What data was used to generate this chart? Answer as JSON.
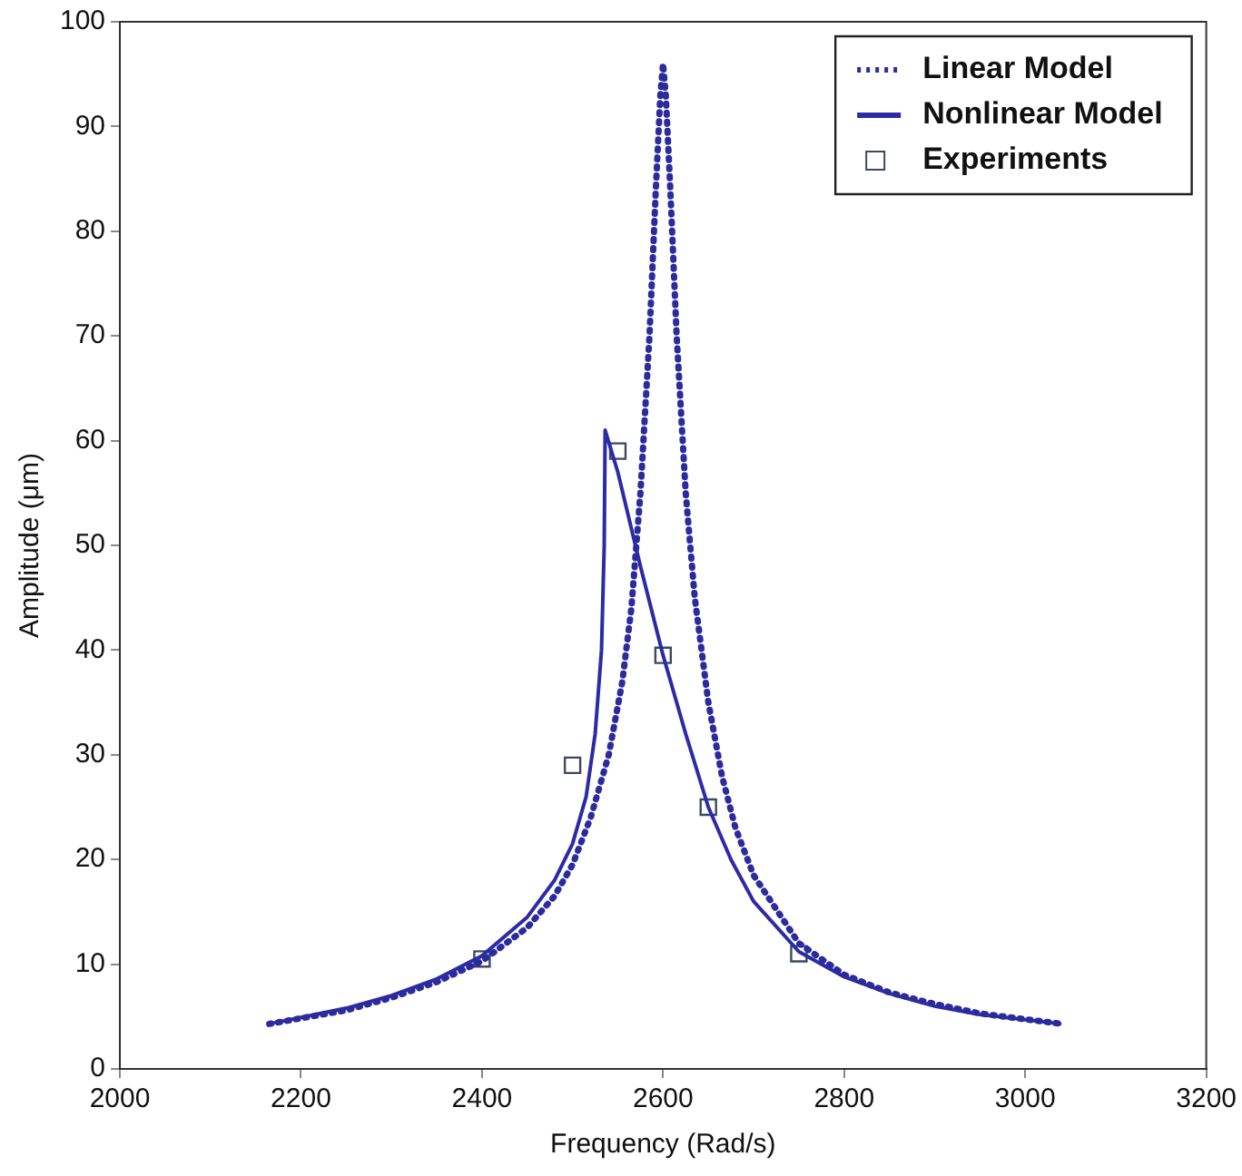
{
  "chart_data": {
    "type": "line",
    "xlabel": "Frequency (Rad/s)",
    "ylabel": "Amplitude (μm)",
    "xlim": [
      2000,
      3200
    ],
    "xticks": [
      2000,
      2200,
      2400,
      2600,
      2800,
      3000,
      3200
    ],
    "ylim": [
      0,
      100
    ],
    "yticks": [
      0,
      10,
      20,
      30,
      40,
      50,
      60,
      70,
      80,
      90,
      100
    ],
    "grid": false,
    "legend": "top right",
    "series": [
      {
        "name": "Linear Model",
        "color": "#2b2b9e",
        "line_style": "dotted",
        "marker": "none",
        "x": [
          2165,
          2250,
          2300,
          2350,
          2400,
          2450,
          2480,
          2500,
          2520,
          2540,
          2555,
          2565,
          2575,
          2585,
          2592,
          2597,
          2600,
          2603,
          2608,
          2615,
          2625,
          2635,
          2650,
          2665,
          2680,
          2700,
          2750,
          2800,
          2850,
          2900,
          2950,
          3040
        ],
        "values": [
          4.3,
          5.6,
          6.8,
          8.3,
          10.3,
          13.5,
          16.5,
          19.5,
          24,
          30,
          37,
          44,
          55,
          70,
          84,
          93,
          96,
          93,
          84,
          70,
          55,
          45,
          35,
          28,
          23,
          18.5,
          12,
          9,
          7.3,
          6.2,
          5.3,
          4.3
        ]
      },
      {
        "name": "Nonlinear Model",
        "color": "#2b2ba8",
        "line_style": "solid",
        "marker": "none",
        "x": [
          2165,
          2250,
          2300,
          2350,
          2400,
          2450,
          2480,
          2500,
          2515,
          2525,
          2532,
          2535,
          2536,
          2550,
          2575,
          2600,
          2625,
          2650,
          2675,
          2700,
          2750,
          2800,
          2850,
          2900,
          2950,
          3040
        ],
        "values": [
          4.3,
          5.8,
          7,
          8.6,
          10.8,
          14.5,
          18,
          21.5,
          26,
          32,
          40,
          50,
          61,
          57,
          48,
          39.5,
          32,
          25,
          20,
          16,
          11.2,
          8.8,
          7.2,
          6,
          5.2,
          4.3
        ]
      },
      {
        "name": "Experiments",
        "type": "scatter",
        "color": "#3a4a60",
        "marker": "square",
        "x": [
          2400,
          2500,
          2550,
          2600,
          2650,
          2750
        ],
        "values": [
          10.5,
          29,
          59,
          39.5,
          25,
          11
        ]
      }
    ]
  }
}
